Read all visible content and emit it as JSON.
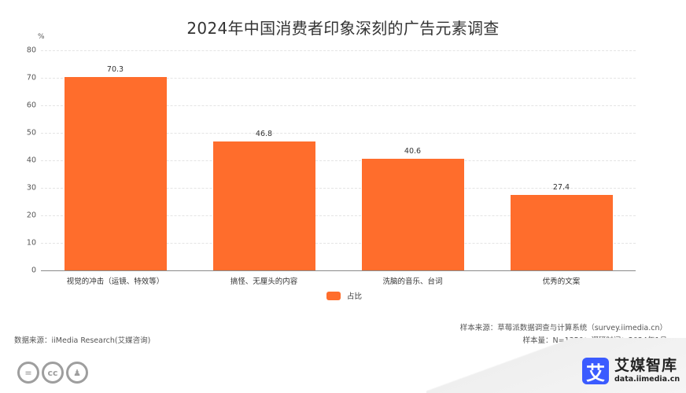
{
  "title": "2024年中国消费者印象深刻的广告元素调查",
  "unit": "%",
  "legend": {
    "label": "占比",
    "color": "#ff6d2c"
  },
  "source": {
    "left": "数据来源：iiMedia Research(艾媒咨询)",
    "right1": "样本来源：草莓派数据调查与计算系统（survey.iimedia.cn）",
    "right2": "样本量：N=1350；调研时间：2024年1月"
  },
  "license_icons": [
    "cc-nd-icon",
    "cc-icon",
    "cc-by-icon"
  ],
  "license_glyphs": [
    "=",
    "cc",
    "♟"
  ],
  "logo": {
    "mark": "艾",
    "name": "艾媒智库",
    "url": "data.iimedia.cn",
    "color": "#3b5bff"
  },
  "chart_data": {
    "type": "bar",
    "title": "2024年中国消费者印象深刻的广告元素调查",
    "categories": [
      "视觉的冲击（运镜、特效等）",
      "搞怪、无厘头的内容",
      "洗脑的音乐、台词",
      "优秀的文案"
    ],
    "series": [
      {
        "name": "占比",
        "values": [
          70.3,
          46.8,
          40.6,
          27.4
        ],
        "color": "#ff6d2c"
      }
    ],
    "xlabel": "",
    "ylabel": "%",
    "ylim": [
      0,
      80
    ],
    "yticks": [
      0,
      10,
      20,
      30,
      40,
      50,
      60,
      70,
      80
    ],
    "grid": true,
    "legend_position": "bottom"
  }
}
